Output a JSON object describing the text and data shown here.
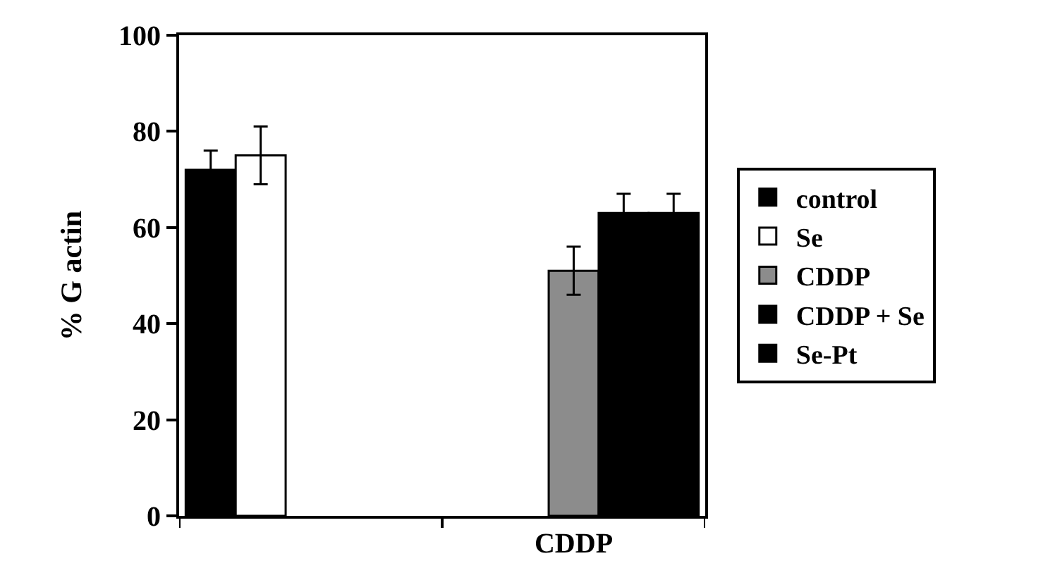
{
  "chart_data": {
    "type": "bar",
    "ylabel": "% G actin",
    "categories": [
      null,
      "CDDP"
    ],
    "series": [
      {
        "name": "control",
        "color": "#000000",
        "values": [
          72,
          null
        ],
        "errors": [
          4,
          null
        ]
      },
      {
        "name": "Se",
        "color": "#ffffff",
        "values": [
          75,
          null
        ],
        "errors": [
          6,
          null
        ]
      },
      {
        "name": "CDDP",
        "color": "#8c8c8c",
        "values": [
          null,
          51
        ],
        "errors": [
          null,
          5
        ]
      },
      {
        "name": "CDDP + Se",
        "color": "#000000",
        "values": [
          null,
          63
        ],
        "errors": [
          null,
          4
        ]
      },
      {
        "name": "Se-Pt",
        "color": "#000000",
        "values": [
          null,
          63
        ],
        "errors": [
          null,
          4
        ]
      }
    ],
    "ylim": [
      0,
      100
    ],
    "yticks": [
      0,
      20,
      40,
      60,
      80,
      100
    ],
    "grid": false,
    "legend": "right"
  }
}
